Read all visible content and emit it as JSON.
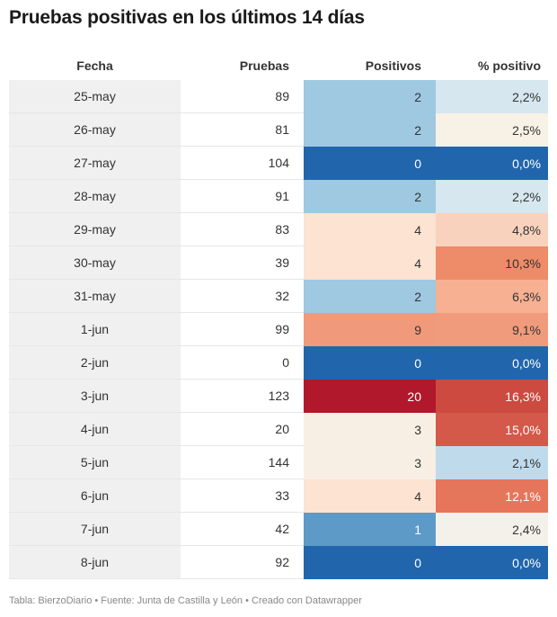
{
  "title": "Pruebas positivas en los últimos 14 días",
  "footer": "Tabla: BierzoDiario • Fuente: Junta de Castilla y León • Creado con Datawrapper",
  "chart_data": {
    "type": "table",
    "columns": [
      "Fecha",
      "Pruebas",
      "Positivos",
      "% positivo"
    ],
    "rows": [
      {
        "fecha": "25-may",
        "pruebas": "89",
        "positivos": "2",
        "pct": "2,2%",
        "pos_color": "#9fc8e1",
        "pct_color": "#d6e7f0"
      },
      {
        "fecha": "26-may",
        "pruebas": "81",
        "positivos": "2",
        "pct": "2,5%",
        "pos_color": "#9fc8e1",
        "pct_color": "#f8f1e5"
      },
      {
        "fecha": "27-may",
        "pruebas": "104",
        "positivos": "0",
        "pct": "0,0%",
        "pos_color": "#2166ac",
        "pct_color": "#2166ac"
      },
      {
        "fecha": "28-may",
        "pruebas": "91",
        "positivos": "2",
        "pct": "2,2%",
        "pos_color": "#9fc8e1",
        "pct_color": "#d6e7f0"
      },
      {
        "fecha": "29-may",
        "pruebas": "83",
        "positivos": "4",
        "pct": "4,8%",
        "pos_color": "#fce3d2",
        "pct_color": "#f9d2bd"
      },
      {
        "fecha": "30-may",
        "pruebas": "39",
        "positivos": "4",
        "pct": "10,3%",
        "pos_color": "#fce3d2",
        "pct_color": "#ee8b68"
      },
      {
        "fecha": "31-may",
        "pruebas": "32",
        "positivos": "2",
        "pct": "6,3%",
        "pos_color": "#9fc8e1",
        "pct_color": "#f7b091"
      },
      {
        "fecha": "1-jun",
        "pruebas": "99",
        "positivos": "9",
        "pct": "9,1%",
        "pos_color": "#f19a7b",
        "pct_color": "#f09b7c"
      },
      {
        "fecha": "2-jun",
        "pruebas": "0",
        "positivos": "0",
        "pct": "0,0%",
        "pos_color": "#2166ac",
        "pct_color": "#2166ac"
      },
      {
        "fecha": "3-jun",
        "pruebas": "123",
        "positivos": "20",
        "pct": "16,3%",
        "pos_color": "#b2182b",
        "pct_color": "#cc4a3f"
      },
      {
        "fecha": "4-jun",
        "pruebas": "20",
        "positivos": "3",
        "pct": "15,0%",
        "pos_color": "#f7efe3",
        "pct_color": "#d4594a"
      },
      {
        "fecha": "5-jun",
        "pruebas": "144",
        "positivos": "3",
        "pct": "2,1%",
        "pos_color": "#f7efe3",
        "pct_color": "#bfdbeb"
      },
      {
        "fecha": "6-jun",
        "pruebas": "33",
        "positivos": "4",
        "pct": "12,1%",
        "pos_color": "#fce3d2",
        "pct_color": "#e6765b"
      },
      {
        "fecha": "7-jun",
        "pruebas": "42",
        "positivos": "1",
        "pct": "2,4%",
        "pos_color": "#5e9ac8",
        "pct_color": "#f3f1ea"
      },
      {
        "fecha": "8-jun",
        "pruebas": "92",
        "positivos": "0",
        "pct": "0,0%",
        "pos_color": "#2166ac",
        "pct_color": "#2166ac"
      }
    ]
  }
}
